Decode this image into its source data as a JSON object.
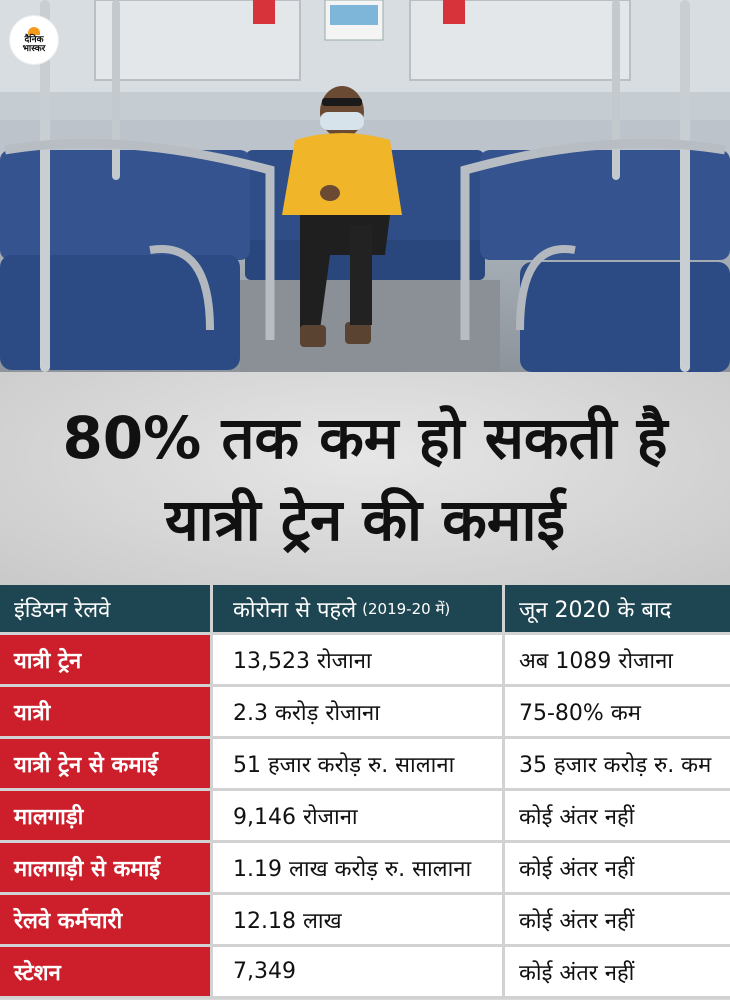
{
  "logo": {
    "line1": "दैनिक",
    "line2": "भास्कर"
  },
  "headline": {
    "line1": "80% तक कम हो सकती है",
    "line2": "यात्री ट्रेन की कमाई"
  },
  "table": {
    "headers": {
      "col1": "इंडियन रेलवे",
      "col2": "कोरोना से पहले",
      "col2_sub": "(2019-20 में)",
      "col3": "जून 2020 के बाद"
    },
    "rows": [
      {
        "label": "यात्री ट्रेन",
        "before": "13,523 रोजाना",
        "after": "अब 1089 रोजाना"
      },
      {
        "label": "यात्री",
        "before": "2.3 करोड़ रोजाना",
        "after": "75-80% कम"
      },
      {
        "label": "यात्री ट्रेन से कमाई",
        "before": "51 हजार करोड़ रु. सालाना",
        "after": "35 हजार करोड़ रु. कम"
      },
      {
        "label": "मालगाड़ी",
        "before": "9,146 रोजाना",
        "after": "कोई अंतर नहीं"
      },
      {
        "label": "मालगाड़ी से कमाई",
        "before": "1.19 लाख करोड़ रु. सालाना",
        "after": "कोई अंतर नहीं"
      },
      {
        "label": "रेलवे कर्मचारी",
        "before": "12.18 लाख",
        "after": "कोई अंतर नहीं"
      },
      {
        "label": "स्टेशन",
        "before": "7,349",
        "after": "कोई अंतर नहीं"
      }
    ]
  },
  "colors": {
    "header_bg": "#1e4652",
    "label_bg": "#cc1f2b",
    "seat_blue": "#2f4d87",
    "shirt_yellow": "#f1b52a"
  }
}
